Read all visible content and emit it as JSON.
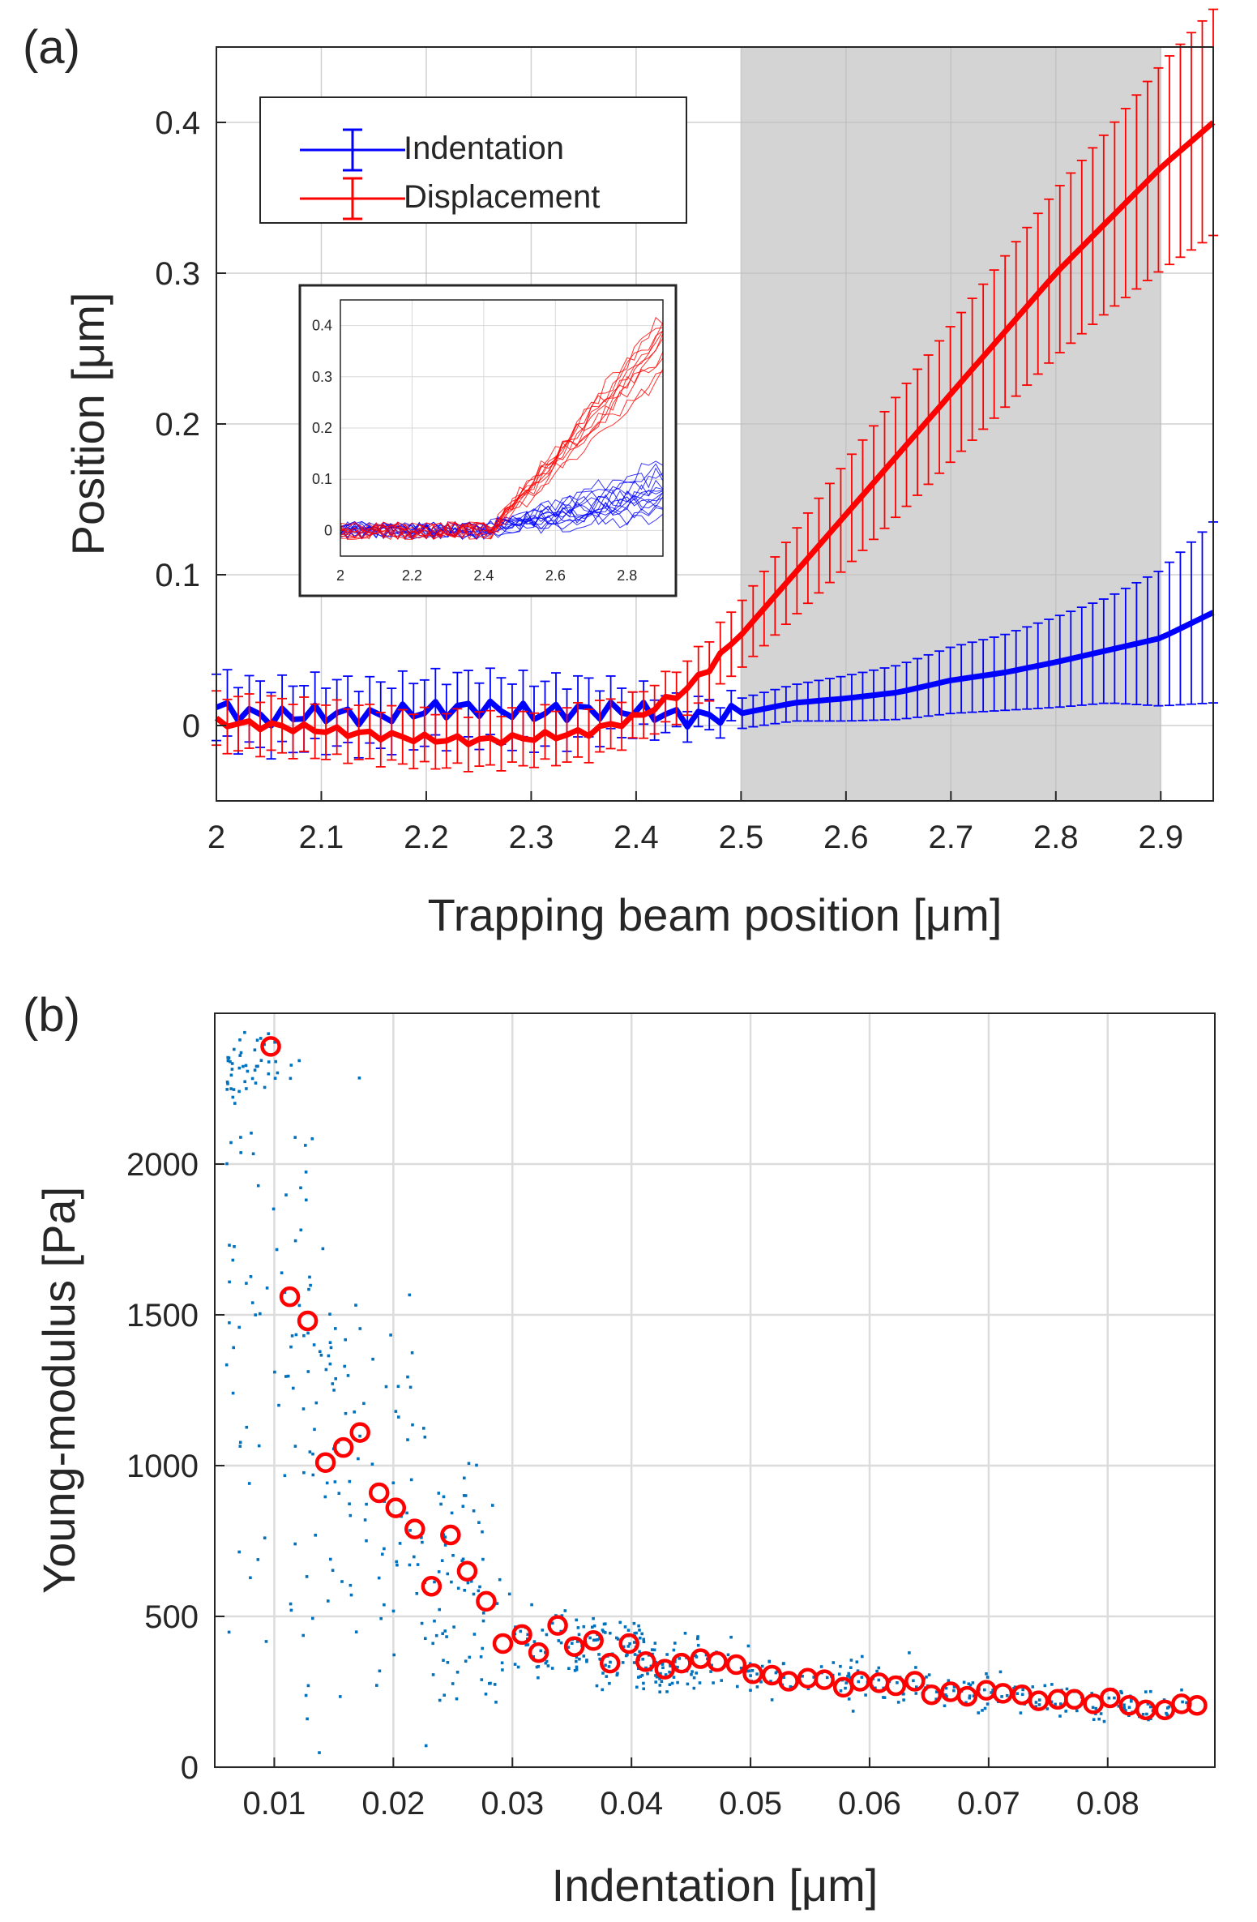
{
  "colors": {
    "indentation": "#0000ff",
    "displacement": "#ff0000",
    "scatter": "#0072bd",
    "shade": "#d4d4d4",
    "axis": "#262626",
    "grid": "#dcdcdc"
  },
  "chart_data": [
    {
      "type": "line",
      "panel_label": "(a)",
      "xlabel": "Trapping beam position [μm]",
      "ylabel": "Position [μm]",
      "xlim": [
        2,
        2.95
      ],
      "ylim": [
        -0.05,
        0.45
      ],
      "xticks": [
        2,
        2.1,
        2.2,
        2.3,
        2.4,
        2.5,
        2.6,
        2.7,
        2.8,
        2.9
      ],
      "xtick_labels": [
        "2",
        "2.1",
        "2.2",
        "2.3",
        "2.4",
        "2.5",
        "2.6",
        "2.7",
        "2.8",
        "2.9"
      ],
      "yticks": [
        0,
        0.1,
        0.2,
        0.3,
        0.4
      ],
      "ytick_labels": [
        "0",
        "0.1",
        "0.2",
        "0.3",
        "0.4"
      ],
      "grid": true,
      "shaded_region": [
        2.5,
        2.9
      ],
      "legend": {
        "placement": "top-left",
        "entries": [
          "Indentation",
          "Displacement"
        ]
      },
      "series": [
        {
          "name": "Indentation",
          "color": "#0000ff",
          "x": [
            2.0,
            2.05,
            2.1,
            2.15,
            2.2,
            2.25,
            2.3,
            2.35,
            2.4,
            2.45,
            2.5,
            2.55,
            2.6,
            2.65,
            2.7,
            2.75,
            2.8,
            2.85,
            2.9,
            2.95
          ],
          "y": [
            0.012,
            0.005,
            0.008,
            0.006,
            0.01,
            0.012,
            0.008,
            0.01,
            0.01,
            0.005,
            0.008,
            0.015,
            0.018,
            0.022,
            0.03,
            0.035,
            0.042,
            0.05,
            0.058,
            0.075
          ],
          "err": [
            0.022,
            0.022,
            0.022,
            0.022,
            0.022,
            0.022,
            0.022,
            0.02,
            0.015,
            0.01,
            0.01,
            0.012,
            0.015,
            0.018,
            0.022,
            0.025,
            0.03,
            0.035,
            0.045,
            0.06
          ]
        },
        {
          "name": "Displacement",
          "color": "#ff0000",
          "x": [
            2.0,
            2.05,
            2.1,
            2.15,
            2.2,
            2.25,
            2.3,
            2.35,
            2.4,
            2.45,
            2.5,
            2.55,
            2.6,
            2.65,
            2.7,
            2.75,
            2.8,
            2.85,
            2.9,
            2.95
          ],
          "y": [
            0.002,
            0.0,
            -0.003,
            -0.006,
            -0.009,
            -0.01,
            -0.008,
            -0.005,
            0.005,
            0.025,
            0.06,
            0.1,
            0.14,
            0.18,
            0.22,
            0.26,
            0.3,
            0.335,
            0.37,
            0.4
          ],
          "err": [
            0.018,
            0.018,
            0.018,
            0.018,
            0.018,
            0.018,
            0.018,
            0.018,
            0.015,
            0.018,
            0.022,
            0.028,
            0.035,
            0.04,
            0.045,
            0.05,
            0.055,
            0.06,
            0.068,
            0.075
          ]
        }
      ],
      "inset": {
        "xlim": [
          2,
          2.9
        ],
        "ylim": [
          -0.05,
          0.45
        ],
        "xticks": [
          2,
          2.2,
          2.4,
          2.6,
          2.8
        ],
        "xtick_labels": [
          "2",
          "2.2",
          "2.4",
          "2.6",
          "2.8"
        ],
        "yticks": [
          0,
          0.1,
          0.2,
          0.3,
          0.4
        ],
        "ytick_labels": [
          "0",
          "0.1",
          "0.2",
          "0.3",
          "0.4"
        ],
        "indentation_end_values": [
          0.02,
          0.035,
          0.045,
          0.055,
          0.06,
          0.065,
          0.07,
          0.075,
          0.08,
          0.085,
          0.09,
          0.1,
          0.11,
          0.12,
          0.13
        ],
        "displacement_end_values": [
          0.3,
          0.32,
          0.34,
          0.35,
          0.36,
          0.37,
          0.38,
          0.39,
          0.4,
          0.41,
          0.42
        ]
      }
    },
    {
      "type": "scatter",
      "panel_label": "(b)",
      "xlabel": "Indentation [μm]",
      "ylabel": "Young-modulus [Pa]",
      "xlim": [
        0.005,
        0.089
      ],
      "ylim": [
        0,
        2500
      ],
      "xticks": [
        0.01,
        0.02,
        0.03,
        0.04,
        0.05,
        0.06,
        0.07,
        0.08
      ],
      "xtick_labels": [
        "0.01",
        "0.02",
        "0.03",
        "0.04",
        "0.05",
        "0.06",
        "0.07",
        "0.08"
      ],
      "yticks": [
        0,
        500,
        1000,
        1500,
        2000
      ],
      "ytick_labels": [
        "0",
        "500",
        "1000",
        "1500",
        "2000"
      ],
      "grid": true,
      "mean_points": [
        [
          0.0097,
          2390
        ],
        [
          0.0113,
          1560
        ],
        [
          0.0128,
          1480
        ],
        [
          0.0143,
          1010
        ],
        [
          0.0158,
          1060
        ],
        [
          0.0172,
          1110
        ],
        [
          0.0188,
          910
        ],
        [
          0.0202,
          860
        ],
        [
          0.0218,
          790
        ],
        [
          0.0232,
          600
        ],
        [
          0.0248,
          770
        ],
        [
          0.0262,
          650
        ],
        [
          0.0278,
          550
        ],
        [
          0.0292,
          410
        ],
        [
          0.0308,
          440
        ],
        [
          0.0322,
          380
        ],
        [
          0.0338,
          470
        ],
        [
          0.0352,
          400
        ],
        [
          0.0368,
          420
        ],
        [
          0.0382,
          345
        ],
        [
          0.0398,
          410
        ],
        [
          0.0412,
          350
        ],
        [
          0.0428,
          325
        ],
        [
          0.0442,
          345
        ],
        [
          0.0458,
          360
        ],
        [
          0.0472,
          350
        ],
        [
          0.0488,
          340
        ],
        [
          0.0502,
          310
        ],
        [
          0.0518,
          305
        ],
        [
          0.0532,
          285
        ],
        [
          0.0548,
          295
        ],
        [
          0.0562,
          290
        ],
        [
          0.0578,
          265
        ],
        [
          0.0592,
          285
        ],
        [
          0.0608,
          280
        ],
        [
          0.0622,
          270
        ],
        [
          0.0638,
          285
        ],
        [
          0.0652,
          240
        ],
        [
          0.0668,
          250
        ],
        [
          0.0682,
          235
        ],
        [
          0.0698,
          255
        ],
        [
          0.0712,
          245
        ],
        [
          0.0728,
          240
        ],
        [
          0.0742,
          220
        ],
        [
          0.0758,
          225
        ],
        [
          0.0772,
          225
        ],
        [
          0.0788,
          210
        ],
        [
          0.0802,
          230
        ],
        [
          0.0818,
          205
        ],
        [
          0.0832,
          190
        ],
        [
          0.0848,
          190
        ],
        [
          0.0862,
          210
        ],
        [
          0.0875,
          205
        ]
      ]
    }
  ]
}
